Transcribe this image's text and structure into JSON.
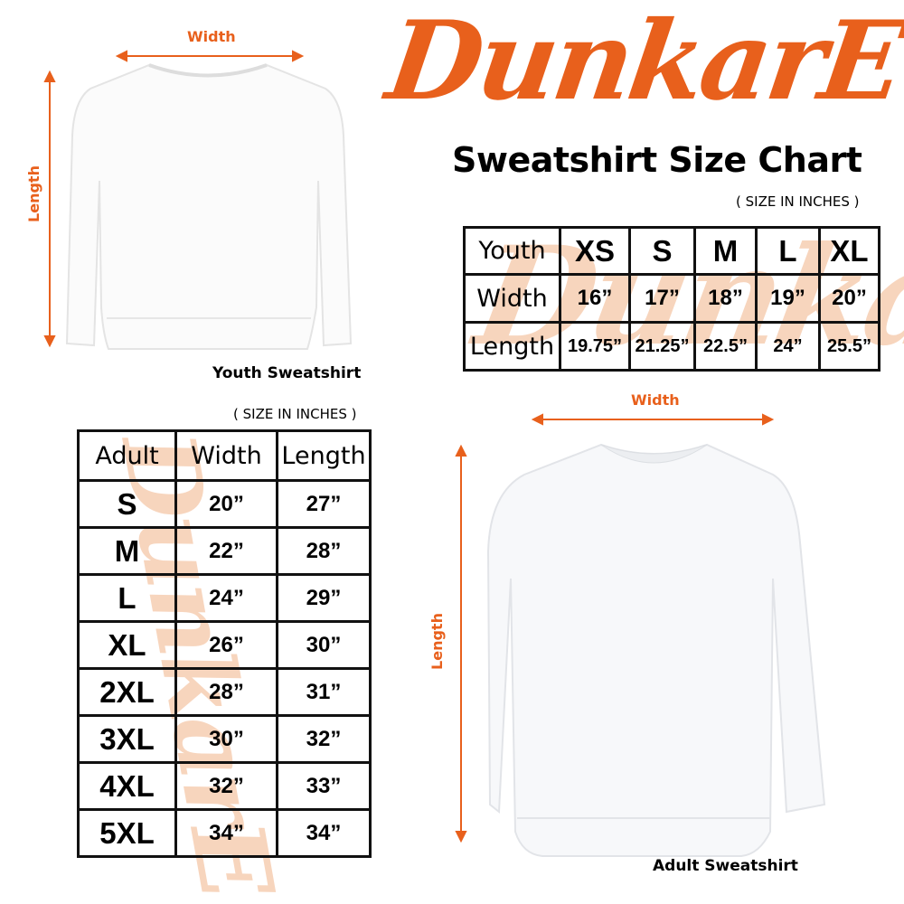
{
  "brand": {
    "logo_text": "DunkarE",
    "color": "#e8601c"
  },
  "title": "Sweatshirt Size Chart",
  "youth": {
    "caption": "Youth Sweatshirt",
    "width_label": "Width",
    "length_label": "Length",
    "units_note": "( SIZE IN INCHES )",
    "table": {
      "header": [
        "Youth",
        "XS",
        "S",
        "M",
        "L",
        "XL"
      ],
      "rows": [
        [
          "Width",
          "16”",
          "17”",
          "18”",
          "19”",
          "20”"
        ],
        [
          "Length",
          "19.75”",
          "21.25”",
          "22.5”",
          "24”",
          "25.5”"
        ]
      ]
    }
  },
  "adult": {
    "caption": "Adult Sweatshirt",
    "width_label": "Width",
    "length_label": "Length",
    "units_note": "( SIZE IN INCHES )",
    "table": {
      "header": [
        "Adult",
        "Width",
        "Length"
      ],
      "rows": [
        [
          "S",
          "20”",
          "27”"
        ],
        [
          "M",
          "22”",
          "28”"
        ],
        [
          "L",
          "24”",
          "29”"
        ],
        [
          "XL",
          "26”",
          "30”"
        ],
        [
          "2XL",
          "28”",
          "31”"
        ],
        [
          "3XL",
          "30”",
          "32”"
        ],
        [
          "4XL",
          "32”",
          "33”"
        ],
        [
          "5XL",
          "34”",
          "34”"
        ]
      ]
    }
  }
}
